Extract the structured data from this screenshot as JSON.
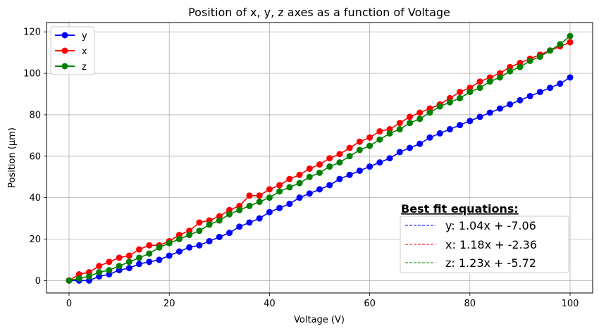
{
  "chart_data": {
    "type": "line",
    "title": "Position of x, y, z axes as a function of Voltage",
    "xlabel": "Voltage (V)",
    "ylabel": "Position (µm)",
    "xlim": [
      -4.5,
      104.5
    ],
    "ylim": [
      -6,
      124.5
    ],
    "xticks": [
      0,
      20,
      40,
      60,
      80,
      100
    ],
    "yticks": [
      0,
      20,
      40,
      60,
      80,
      100,
      120
    ],
    "grid": true,
    "legend_position": "top-left",
    "x": [
      0,
      2,
      4,
      6,
      8,
      10,
      12,
      14,
      16,
      18,
      20,
      22,
      24,
      26,
      28,
      30,
      32,
      34,
      36,
      38,
      40,
      42,
      44,
      46,
      48,
      50,
      52,
      54,
      56,
      58,
      60,
      62,
      64,
      66,
      68,
      70,
      72,
      74,
      76,
      78,
      80,
      82,
      84,
      86,
      88,
      90,
      92,
      94,
      96,
      98,
      100
    ],
    "series": [
      {
        "name": "y",
        "color": "#0000ff",
        "values": [
          0,
          0,
          0,
          2,
          3,
          5,
          6,
          8,
          9,
          10,
          12,
          14,
          16,
          17,
          19,
          21,
          23,
          26,
          28,
          30,
          33,
          35,
          37,
          40,
          42,
          44,
          46,
          49,
          51,
          53,
          55,
          57,
          59,
          62,
          64,
          66,
          69,
          71,
          73,
          75,
          77,
          79,
          81,
          83,
          85,
          87,
          89,
          91,
          93,
          95,
          98
        ]
      },
      {
        "name": "x",
        "color": "#ff0000",
        "values": [
          0,
          3,
          4,
          7,
          9,
          11,
          12,
          15,
          17,
          17,
          19,
          22,
          24,
          28,
          29,
          31,
          34,
          36,
          41,
          41,
          44,
          46,
          49,
          51,
          54,
          56,
          59,
          61,
          64,
          67,
          69,
          72,
          73,
          76,
          79,
          81,
          83,
          85,
          88,
          91,
          93,
          96,
          98,
          100,
          103,
          105,
          107,
          109,
          111,
          113,
          115
        ]
      },
      {
        "name": "z",
        "color": "#008000",
        "values": [
          0,
          1,
          2,
          4,
          5,
          7,
          9,
          11,
          13,
          16,
          18,
          20,
          22,
          24,
          27,
          29,
          32,
          34,
          36,
          38,
          40,
          43,
          45,
          47,
          50,
          52,
          55,
          57,
          60,
          63,
          65,
          68,
          71,
          73,
          76,
          78,
          81,
          84,
          86,
          88,
          91,
          93,
          96,
          98,
          101,
          103,
          106,
          108,
          111,
          114,
          118
        ]
      }
    ],
    "annotation": {
      "header": "Best fit equations:",
      "lines": [
        {
          "label": "y: 1.04x + -7.06",
          "color": "#0000ff"
        },
        {
          "label": "x: 1.18x + -2.36",
          "color": "#ff0000"
        },
        {
          "label": "z: 1.23x + -5.72",
          "color": "#008000"
        }
      ]
    }
  }
}
